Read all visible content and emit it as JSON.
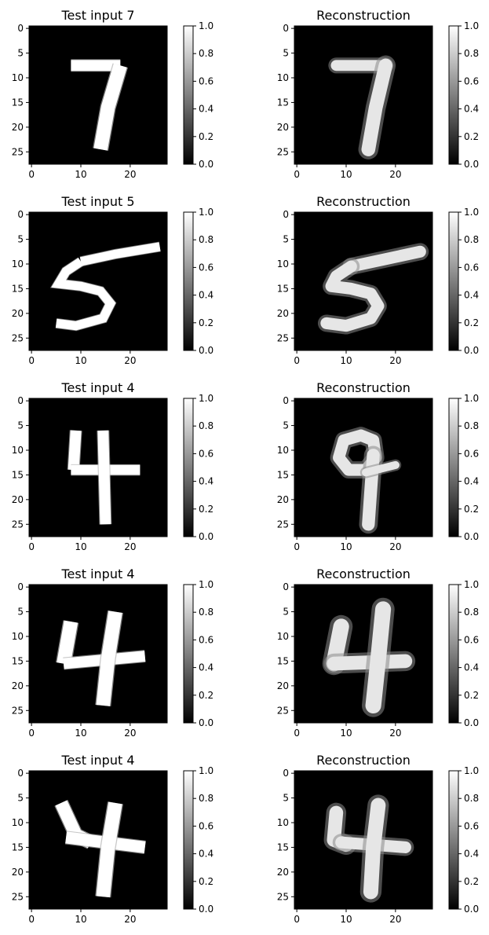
{
  "chart_data": [
    {
      "type": "heatmap",
      "title": "Test input 7",
      "digit": "7",
      "xticks": [
        0,
        10,
        20
      ],
      "yticks": [
        0,
        5,
        10,
        15,
        20,
        25
      ],
      "xlim": [
        -0.5,
        27.5
      ],
      "ylim": [
        27.5,
        -0.5
      ],
      "colorbar": {
        "range": [
          0,
          1
        ],
        "ticks": [
          "0.0",
          "0.2",
          "0.4",
          "0.6",
          "0.8",
          "1.0"
        ]
      },
      "colormap": [
        "#000000",
        "#ffffff"
      ],
      "strokes": [
        {
          "points": [
            [
              8,
              7.5
            ],
            [
              18,
              7.5
            ]
          ],
          "width": 2.2
        },
        {
          "points": [
            [
              18,
              7.5
            ],
            [
              15.5,
              16
            ],
            [
              14,
              24.5
            ]
          ],
          "width": 2.8
        }
      ]
    },
    {
      "type": "heatmap",
      "title": "Reconstruction",
      "digit": "7",
      "xticks": [
        0,
        10,
        20
      ],
      "yticks": [
        0,
        5,
        10,
        15,
        20,
        25
      ],
      "xlim": [
        -0.5,
        27.5
      ],
      "ylim": [
        27.5,
        -0.5
      ],
      "colorbar": {
        "range": [
          0,
          1
        ],
        "ticks": [
          "0.0",
          "0.2",
          "0.4",
          "0.6",
          "0.8",
          "1.0"
        ]
      },
      "colormap": [
        "#000000",
        "#ffffff"
      ],
      "strokes": [
        {
          "points": [
            [
              8,
              7.5
            ],
            [
              18,
              7.5
            ]
          ],
          "width": 2.2
        },
        {
          "points": [
            [
              18,
              7.5
            ],
            [
              16,
              16
            ],
            [
              14.5,
              24.5
            ]
          ],
          "width": 2.8
        }
      ]
    },
    {
      "type": "heatmap",
      "title": "Test input 5",
      "digit": "5",
      "xticks": [
        0,
        10,
        20
      ],
      "yticks": [
        0,
        5,
        10,
        15,
        20,
        25
      ],
      "xlim": [
        -0.5,
        27.5
      ],
      "ylim": [
        27.5,
        -0.5
      ],
      "colorbar": {
        "range": [
          0,
          1
        ],
        "ticks": [
          "0.0",
          "0.2",
          "0.4",
          "0.6",
          "0.8",
          "1.0"
        ]
      },
      "colormap": [
        "#000000",
        "#ffffff"
      ],
      "strokes": [
        {
          "points": [
            [
              26,
              6.5
            ],
            [
              17,
              8
            ],
            [
              10,
              9.5
            ]
          ],
          "width": 1.8
        },
        {
          "points": [
            [
              10,
              9.5
            ],
            [
              7,
              11.5
            ],
            [
              5.5,
              14
            ],
            [
              10,
              14.5
            ],
            [
              14,
              15.5
            ],
            [
              16,
              18
            ],
            [
              14.5,
              21
            ],
            [
              9,
              22.5
            ],
            [
              5,
              22
            ]
          ],
          "width": 1.8
        }
      ]
    },
    {
      "type": "heatmap",
      "title": "Reconstruction",
      "digit": "5",
      "xticks": [
        0,
        10,
        20
      ],
      "yticks": [
        0,
        5,
        10,
        15,
        20,
        25
      ],
      "xlim": [
        -0.5,
        27.5
      ],
      "ylim": [
        27.5,
        -0.5
      ],
      "colorbar": {
        "range": [
          0,
          1
        ],
        "ticks": [
          "0.0",
          "0.2",
          "0.4",
          "0.6",
          "0.8",
          "1.0"
        ]
      },
      "colormap": [
        "#000000",
        "#ffffff"
      ],
      "strokes": [
        {
          "points": [
            [
              25,
              7.5
            ],
            [
              18,
              9
            ],
            [
              11,
              10.5
            ]
          ],
          "width": 2.4
        },
        {
          "points": [
            [
              11,
              10.5
            ],
            [
              8,
              12.5
            ],
            [
              7,
              14.5
            ],
            [
              11,
              15
            ],
            [
              15,
              16
            ],
            [
              16.5,
              18.5
            ],
            [
              15,
              21
            ],
            [
              10,
              22.5
            ],
            [
              6,
              22
            ]
          ],
          "width": 2.4
        }
      ]
    },
    {
      "type": "heatmap",
      "title": "Test input 4",
      "digit": "4",
      "xticks": [
        0,
        10,
        20
      ],
      "yticks": [
        0,
        5,
        10,
        15,
        20,
        25
      ],
      "xlim": [
        -0.5,
        27.5
      ],
      "ylim": [
        27.5,
        -0.5
      ],
      "colorbar": {
        "range": [
          0,
          1
        ],
        "ticks": [
          "0.0",
          "0.2",
          "0.4",
          "0.6",
          "0.8",
          "1.0"
        ]
      },
      "colormap": [
        "#000000",
        "#ffffff"
      ],
      "strokes": [
        {
          "points": [
            [
              9,
              6
            ],
            [
              8.5,
              14
            ]
          ],
          "width": 2.2
        },
        {
          "points": [
            [
              8,
              14
            ],
            [
              22,
              14
            ]
          ],
          "width": 2.0
        },
        {
          "points": [
            [
              14.5,
              6
            ],
            [
              15,
              25
            ]
          ],
          "width": 2.2
        }
      ]
    },
    {
      "type": "heatmap",
      "title": "Reconstruction",
      "digit": "4",
      "xticks": [
        0,
        10,
        20
      ],
      "yticks": [
        0,
        5,
        10,
        15,
        20,
        25
      ],
      "xlim": [
        -0.5,
        27.5
      ],
      "ylim": [
        27.5,
        -0.5
      ],
      "colorbar": {
        "range": [
          0,
          1
        ],
        "ticks": [
          "0.0",
          "0.2",
          "0.4",
          "0.6",
          "0.8",
          "1.0"
        ]
      },
      "colormap": [
        "#000000",
        "#ffffff"
      ],
      "strokes": [
        {
          "points": [
            [
              13,
              7
            ],
            [
              9.5,
              8
            ],
            [
              8.5,
              11.5
            ],
            [
              10.5,
              14
            ],
            [
              14,
              14
            ],
            [
              16,
              11.5
            ],
            [
              15.5,
              8
            ],
            [
              13,
              7
            ]
          ],
          "width": 2.4
        },
        {
          "points": [
            [
              15.5,
              11
            ],
            [
              15,
              18
            ],
            [
              14.5,
              25
            ]
          ],
          "width": 2.6
        },
        {
          "points": [
            [
              14,
              14.5
            ],
            [
              20,
              13
            ]
          ],
          "width": 1.6
        }
      ]
    },
    {
      "type": "heatmap",
      "title": "Test input 4",
      "digit": "4",
      "xticks": [
        0,
        10,
        20
      ],
      "yticks": [
        0,
        5,
        10,
        15,
        20,
        25
      ],
      "xlim": [
        -0.5,
        27.5
      ],
      "ylim": [
        27.5,
        -0.5
      ],
      "colorbar": {
        "range": [
          0,
          1
        ],
        "ticks": [
          "0.0",
          "0.2",
          "0.4",
          "0.6",
          "0.8",
          "1.0"
        ]
      },
      "colormap": [
        "#000000",
        "#ffffff"
      ],
      "strokes": [
        {
          "points": [
            [
              8,
              7
            ],
            [
              6.5,
              15.5
            ]
          ],
          "width": 2.8
        },
        {
          "points": [
            [
              6.5,
              15.5
            ],
            [
              23,
              14
            ]
          ],
          "width": 2.2
        },
        {
          "points": [
            [
              17,
              5
            ],
            [
              15.5,
              14.5
            ],
            [
              14.5,
              24
            ]
          ],
          "width": 2.8
        }
      ]
    },
    {
      "type": "heatmap",
      "title": "Reconstruction",
      "digit": "4",
      "xticks": [
        0,
        10,
        20
      ],
      "yticks": [
        0,
        5,
        10,
        15,
        20,
        25
      ],
      "xlim": [
        -0.5,
        27.5
      ],
      "ylim": [
        27.5,
        -0.5
      ],
      "colorbar": {
        "range": [
          0,
          1
        ],
        "ticks": [
          "0.0",
          "0.2",
          "0.4",
          "0.6",
          "0.8",
          "1.0"
        ]
      },
      "colormap": [
        "#000000",
        "#ffffff"
      ],
      "strokes": [
        {
          "points": [
            [
              9,
              8
            ],
            [
              7.5,
              15.5
            ]
          ],
          "width": 3.2
        },
        {
          "points": [
            [
              7.5,
              15.5
            ],
            [
              22,
              15
            ]
          ],
          "width": 2.8
        },
        {
          "points": [
            [
              17.5,
              4.5
            ],
            [
              16.5,
              14.5
            ],
            [
              15.5,
              24
            ]
          ],
          "width": 3.2
        }
      ]
    },
    {
      "type": "heatmap",
      "title": "Test input 4",
      "digit": "4",
      "xticks": [
        0,
        10,
        20
      ],
      "yticks": [
        0,
        5,
        10,
        15,
        20,
        25
      ],
      "xlim": [
        -0.5,
        27.5
      ],
      "ylim": [
        27.5,
        -0.5
      ],
      "colorbar": {
        "range": [
          0,
          1
        ],
        "ticks": [
          "0.0",
          "0.2",
          "0.4",
          "0.6",
          "0.8",
          "1.0"
        ]
      },
      "colormap": [
        "#000000",
        "#ffffff"
      ],
      "strokes": [
        {
          "points": [
            [
              6,
              6
            ],
            [
              9,
              12.5
            ],
            [
              12,
              14
            ]
          ],
          "width": 2.6
        },
        {
          "points": [
            [
              7,
              13
            ],
            [
              23,
              15
            ]
          ],
          "width": 2.4
        },
        {
          "points": [
            [
              17,
              6
            ],
            [
              15.5,
              15
            ],
            [
              14.5,
              25
            ]
          ],
          "width": 2.8
        }
      ]
    },
    {
      "type": "heatmap",
      "title": "Reconstruction",
      "digit": "4",
      "xticks": [
        0,
        10,
        20
      ],
      "yticks": [
        0,
        5,
        10,
        15,
        20,
        25
      ],
      "xlim": [
        -0.5,
        27.5
      ],
      "ylim": [
        27.5,
        -0.5
      ],
      "colorbar": {
        "range": [
          0,
          1
        ],
        "ticks": [
          "0.0",
          "0.2",
          "0.4",
          "0.6",
          "0.8",
          "1.0"
        ]
      },
      "colormap": [
        "#000000",
        "#ffffff"
      ],
      "strokes": [
        {
          "points": [
            [
              8,
              8
            ],
            [
              7.5,
              13.5
            ],
            [
              10,
              14.5
            ]
          ],
          "width": 2.8
        },
        {
          "points": [
            [
              9,
              14
            ],
            [
              22,
              15
            ]
          ],
          "width": 2.4
        },
        {
          "points": [
            [
              16.5,
              6.5
            ],
            [
              15.5,
              15
            ],
            [
              15,
              24
            ]
          ],
          "width": 3.0
        }
      ]
    }
  ]
}
